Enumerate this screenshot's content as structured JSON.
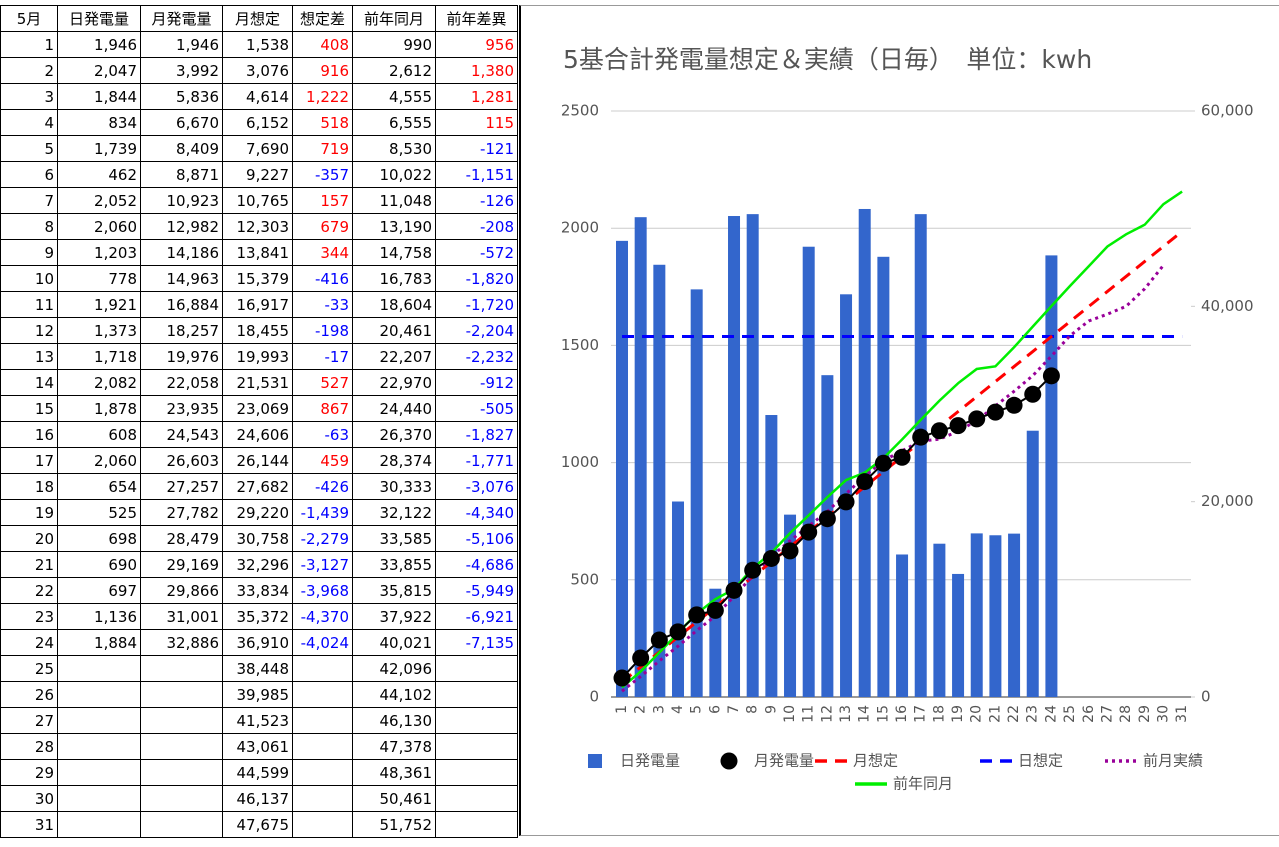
{
  "table": {
    "header": [
      "5月",
      "日発電量",
      "月発電量",
      "月想定",
      "想定差",
      "前年同月",
      "前年差異"
    ],
    "rows": [
      [
        "1",
        "1,946",
        "1,946",
        "1,538",
        "408",
        "990",
        "956"
      ],
      [
        "2",
        "2,047",
        "3,992",
        "3,076",
        "916",
        "2,612",
        "1,380"
      ],
      [
        "3",
        "1,844",
        "5,836",
        "4,614",
        "1,222",
        "4,555",
        "1,281"
      ],
      [
        "4",
        "834",
        "6,670",
        "6,152",
        "518",
        "6,555",
        "115"
      ],
      [
        "5",
        "1,739",
        "8,409",
        "7,690",
        "719",
        "8,530",
        "-121"
      ],
      [
        "6",
        "462",
        "8,871",
        "9,227",
        "-357",
        "10,022",
        "-1,151"
      ],
      [
        "7",
        "2,052",
        "10,923",
        "10,765",
        "157",
        "11,048",
        "-126"
      ],
      [
        "8",
        "2,060",
        "12,982",
        "12,303",
        "679",
        "13,190",
        "-208"
      ],
      [
        "9",
        "1,203",
        "14,186",
        "13,841",
        "344",
        "14,758",
        "-572"
      ],
      [
        "10",
        "778",
        "14,963",
        "15,379",
        "-416",
        "16,783",
        "-1,820"
      ],
      [
        "11",
        "1,921",
        "16,884",
        "16,917",
        "-33",
        "18,604",
        "-1,720"
      ],
      [
        "12",
        "1,373",
        "18,257",
        "18,455",
        "-198",
        "20,461",
        "-2,204"
      ],
      [
        "13",
        "1,718",
        "19,976",
        "19,993",
        "-17",
        "22,207",
        "-2,232"
      ],
      [
        "14",
        "2,082",
        "22,058",
        "21,531",
        "527",
        "22,970",
        "-912"
      ],
      [
        "15",
        "1,878",
        "23,935",
        "23,069",
        "867",
        "24,440",
        "-505"
      ],
      [
        "16",
        "608",
        "24,543",
        "24,606",
        "-63",
        "26,370",
        "-1,827"
      ],
      [
        "17",
        "2,060",
        "26,603",
        "26,144",
        "459",
        "28,374",
        "-1,771"
      ],
      [
        "18",
        "654",
        "27,257",
        "27,682",
        "-426",
        "30,333",
        "-3,076"
      ],
      [
        "19",
        "525",
        "27,782",
        "29,220",
        "-1,439",
        "32,122",
        "-4,340"
      ],
      [
        "20",
        "698",
        "28,479",
        "30,758",
        "-2,279",
        "33,585",
        "-5,106"
      ],
      [
        "21",
        "690",
        "29,169",
        "32,296",
        "-3,127",
        "33,855",
        "-4,686"
      ],
      [
        "22",
        "697",
        "29,866",
        "33,834",
        "-3,968",
        "35,815",
        "-5,949"
      ],
      [
        "23",
        "1,136",
        "31,001",
        "35,372",
        "-4,370",
        "37,922",
        "-6,921"
      ],
      [
        "24",
        "1,884",
        "32,886",
        "36,910",
        "-4,024",
        "40,021",
        "-7,135"
      ],
      [
        "25",
        null,
        null,
        "38,448",
        null,
        "42,096",
        null
      ],
      [
        "26",
        null,
        null,
        "39,985",
        null,
        "44,102",
        null
      ],
      [
        "27",
        null,
        null,
        "41,523",
        null,
        "46,130",
        null
      ],
      [
        "28",
        null,
        null,
        "43,061",
        null,
        "47,378",
        null
      ],
      [
        "29",
        null,
        null,
        "44,599",
        null,
        "48,361",
        null
      ],
      [
        "30",
        null,
        null,
        "46,137",
        null,
        "50,461",
        null
      ],
      [
        "31",
        null,
        null,
        "47,675",
        null,
        "51,752",
        null
      ]
    ]
  },
  "chart_data": {
    "type": "combo",
    "title": "5基合計発電量想定＆実績（日毎）　単位：kwh",
    "categories": [
      "1",
      "2",
      "3",
      "4",
      "5",
      "6",
      "7",
      "8",
      "9",
      "10",
      "11",
      "12",
      "13",
      "14",
      "15",
      "16",
      "17",
      "18",
      "19",
      "20",
      "21",
      "22",
      "23",
      "24",
      "25",
      "26",
      "27",
      "28",
      "29",
      "30",
      "31"
    ],
    "ylim": [
      0,
      2500
    ],
    "yticks": [
      0,
      500,
      1000,
      1500,
      2000,
      2500
    ],
    "y2lim": [
      0,
      60000
    ],
    "y2ticks": [
      0,
      {
        "value": 20000,
        "label": "20,000"
      },
      {
        "value": 40000,
        "label": "40,000"
      },
      {
        "value": 60000,
        "label": "60,000"
      }
    ],
    "grid": true,
    "series": [
      {
        "name": "日発電量",
        "style": "bar",
        "color": "#3366cc",
        "values": [
          1946,
          2047,
          1844,
          834,
          1739,
          462,
          2052,
          2060,
          1203,
          778,
          1921,
          1373,
          1718,
          2082,
          1878,
          608,
          2060,
          654,
          525,
          698,
          690,
          697,
          1136,
          1884,
          null,
          null,
          null,
          null,
          null,
          null,
          null
        ]
      },
      {
        "name": "月発電量",
        "style": "dots",
        "color": "#000000",
        "axis": "y2",
        "values": [
          1946,
          3992,
          5836,
          6670,
          8409,
          8871,
          10923,
          12982,
          14186,
          14963,
          16884,
          18257,
          19976,
          22058,
          23935,
          24543,
          26603,
          27257,
          27782,
          28479,
          29169,
          29866,
          31001,
          32886,
          null,
          null,
          null,
          null,
          null,
          null,
          null
        ]
      },
      {
        "name": "月想定",
        "style": "dashed",
        "color": "#ff0000",
        "axis": "y2",
        "values": [
          1538,
          3076,
          4614,
          6152,
          7690,
          9227,
          10765,
          12303,
          13841,
          15379,
          16917,
          18455,
          19993,
          21531,
          23069,
          24606,
          26144,
          27682,
          29220,
          30758,
          32296,
          33834,
          35372,
          36910,
          38448,
          39985,
          41523,
          43061,
          44599,
          46137,
          47675
        ]
      },
      {
        "name": "日想定",
        "style": "dashed",
        "color": "#0000ff",
        "values": [
          1538,
          1538,
          1538,
          1538,
          1538,
          1538,
          1538,
          1538,
          1538,
          1538,
          1538,
          1538,
          1538,
          1538,
          1538,
          1538,
          1538,
          1538,
          1538,
          1538,
          1538,
          1538,
          1538,
          1538,
          1538,
          1538,
          1538,
          1538,
          1538,
          1538,
          1538
        ]
      },
      {
        "name": "前月実績",
        "style": "dotted",
        "color": "#990099",
        "axis": "y2",
        "values": [
          600,
          2100,
          3700,
          5200,
          6800,
          8300,
          10300,
          12400,
          14400,
          16000,
          17500,
          19000,
          20800,
          22600,
          24200,
          25200,
          26200,
          26400,
          27200,
          28300,
          29800,
          31300,
          32900,
          34900,
          37000,
          38500,
          39200,
          40000,
          41800,
          44200,
          null
        ]
      },
      {
        "name": "前年同月",
        "style": "line",
        "color": "#00ee00",
        "axis": "y2",
        "values": [
          990,
          2612,
          4555,
          6555,
          8530,
          10022,
          11048,
          13190,
          14758,
          16783,
          18604,
          20461,
          22207,
          22970,
          24440,
          26370,
          28374,
          30333,
          32122,
          33585,
          33855,
          35815,
          37922,
          40021,
          42096,
          44102,
          46130,
          47378,
          48361,
          50461,
          51752
        ]
      }
    ]
  }
}
